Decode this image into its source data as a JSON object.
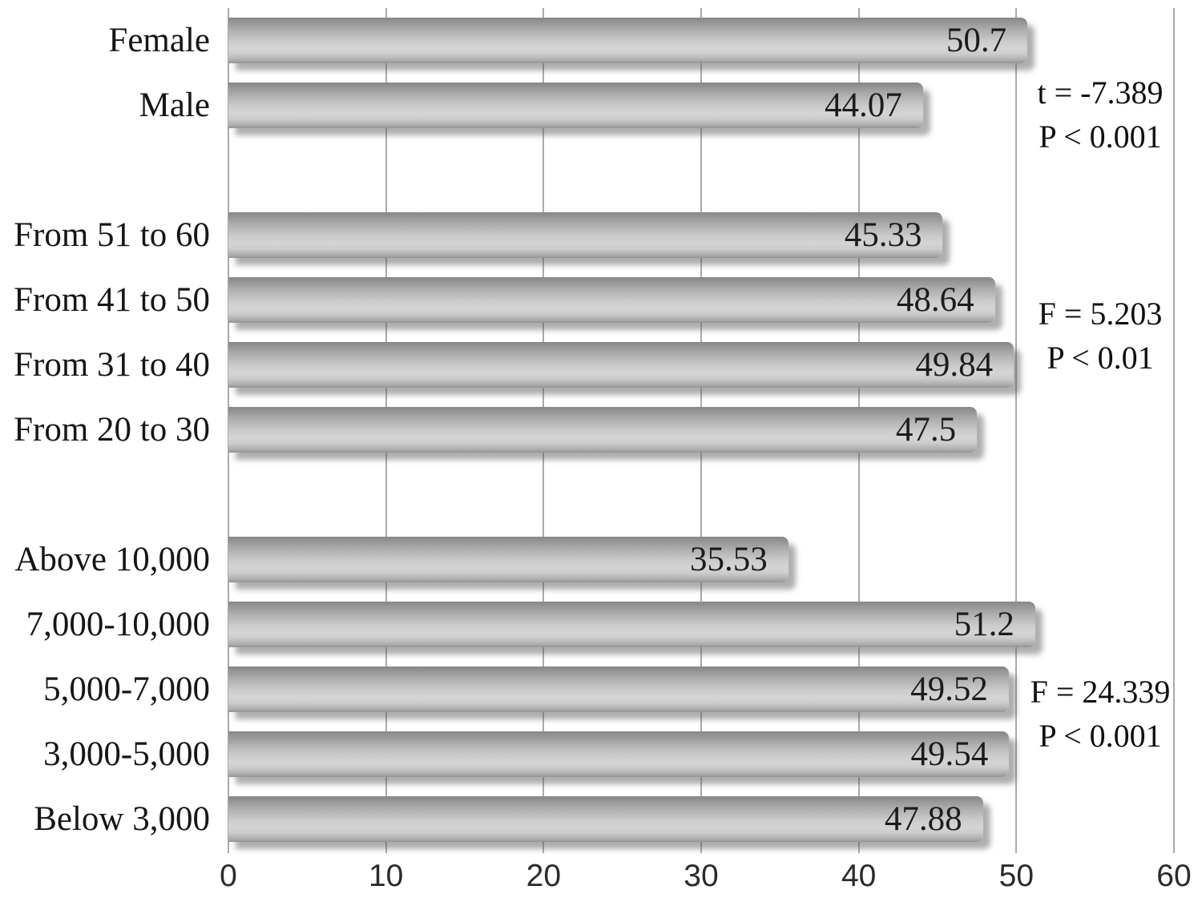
{
  "chart_data": {
    "type": "bar",
    "orientation": "horizontal",
    "title": "",
    "xlabel": "",
    "ylabel": "",
    "xlim": [
      0,
      60
    ],
    "x_ticks": [
      0,
      10,
      20,
      30,
      40,
      50,
      60
    ],
    "grid": true,
    "legend": "none",
    "colors": {
      "background": "#ffffff",
      "gridline": "#aaaaaa",
      "bar_fill_dark": "#8a8a8a",
      "bar_fill_light": "#d4d4d4",
      "bar_shadow": "rgba(95,95,95,0.5)",
      "label_text": "#161616",
      "axis_text": "#2b2b2b"
    },
    "groups": [
      {
        "name": "gender",
        "items": [
          {
            "label": "Female",
            "value": 50.7,
            "value_text": "50.7"
          },
          {
            "label": "Male",
            "value": 44.07,
            "value_text": "44.07"
          }
        ],
        "annotation": [
          "t = -7.389",
          "P < 0.001"
        ]
      },
      {
        "name": "age",
        "items": [
          {
            "label": "From 51 to 60",
            "value": 45.33,
            "value_text": "45.33"
          },
          {
            "label": "From 41 to 50",
            "value": 48.64,
            "value_text": "48.64"
          },
          {
            "label": "From 31 to 40",
            "value": 49.84,
            "value_text": "49.84"
          },
          {
            "label": "From 20 to 30",
            "value": 47.5,
            "value_text": "47.5"
          }
        ],
        "annotation": [
          "F = 5.203",
          "P < 0.01"
        ]
      },
      {
        "name": "income",
        "items": [
          {
            "label": "Above 10,000",
            "value": 35.53,
            "value_text": "35.53"
          },
          {
            "label": "7,000-10,000",
            "value": 51.2,
            "value_text": "51.2"
          },
          {
            "label": "5,000-7,000",
            "value": 49.52,
            "value_text": "49.52"
          },
          {
            "label": "3,000-5,000",
            "value": 49.54,
            "value_text": "49.54"
          },
          {
            "label": "Below 3,000",
            "value": 47.88,
            "value_text": "47.88"
          }
        ],
        "annotation": [
          "F = 24.339",
          "P < 0.001"
        ]
      }
    ]
  }
}
